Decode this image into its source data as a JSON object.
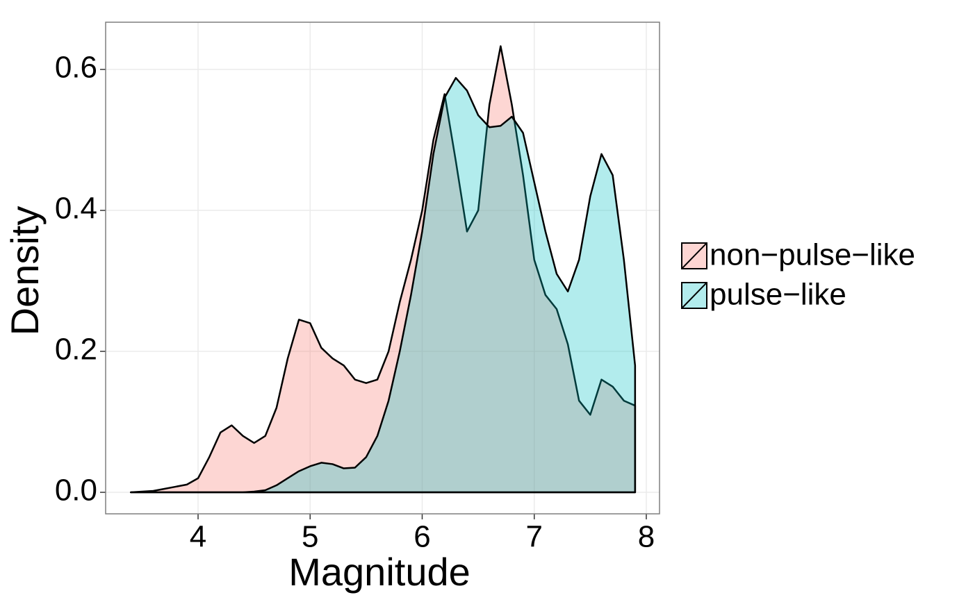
{
  "chart_data": {
    "type": "area",
    "x_label": "Magnitude",
    "y_label": "Density",
    "x": [
      3.4,
      3.5,
      3.6,
      3.7,
      3.8,
      3.9,
      4.0,
      4.1,
      4.2,
      4.3,
      4.4,
      4.5,
      4.6,
      4.7,
      4.8,
      4.9,
      5.0,
      5.1,
      5.2,
      5.3,
      5.4,
      5.5,
      5.6,
      5.7,
      5.8,
      5.9,
      6.0,
      6.1,
      6.2,
      6.3,
      6.4,
      6.5,
      6.6,
      6.7,
      6.8,
      6.9,
      7.0,
      7.1,
      7.2,
      7.3,
      7.4,
      7.5,
      7.6,
      7.7,
      7.8,
      7.9
    ],
    "series": [
      {
        "name": "non−pulse−like",
        "color": "#F8766D",
        "values": [
          0,
          0.001,
          0.002,
          0.005,
          0.008,
          0.011,
          0.02,
          0.05,
          0.085,
          0.095,
          0.08,
          0.07,
          0.08,
          0.12,
          0.19,
          0.245,
          0.24,
          0.205,
          0.19,
          0.18,
          0.16,
          0.155,
          0.16,
          0.2,
          0.27,
          0.33,
          0.4,
          0.5,
          0.565,
          0.47,
          0.37,
          0.4,
          0.55,
          0.633,
          0.55,
          0.45,
          0.33,
          0.28,
          0.26,
          0.21,
          0.13,
          0.11,
          0.16,
          0.15,
          0.13,
          0.123
        ]
      },
      {
        "name": "pulse−like",
        "color": "#00BFC4",
        "values": [
          0,
          0,
          0,
          0,
          0,
          0,
          0,
          0,
          0,
          0,
          0,
          0.001,
          0.003,
          0.01,
          0.02,
          0.03,
          0.037,
          0.042,
          0.04,
          0.034,
          0.035,
          0.05,
          0.08,
          0.13,
          0.2,
          0.28,
          0.37,
          0.48,
          0.56,
          0.588,
          0.57,
          0.535,
          0.518,
          0.52,
          0.533,
          0.51,
          0.44,
          0.37,
          0.31,
          0.285,
          0.33,
          0.42,
          0.48,
          0.45,
          0.33,
          0.18
        ]
      }
    ],
    "xlim": [
      3.175,
      8.118
    ],
    "ylim": [
      -0.0305,
      0.667
    ],
    "xticks": [
      4,
      5,
      6,
      7,
      8
    ],
    "yticks": [
      {
        "value": 0,
        "label": "0.0"
      },
      0.2,
      0.4,
      0.6
    ],
    "grid": true,
    "fill_opacity": 0.3,
    "legend": "right"
  }
}
